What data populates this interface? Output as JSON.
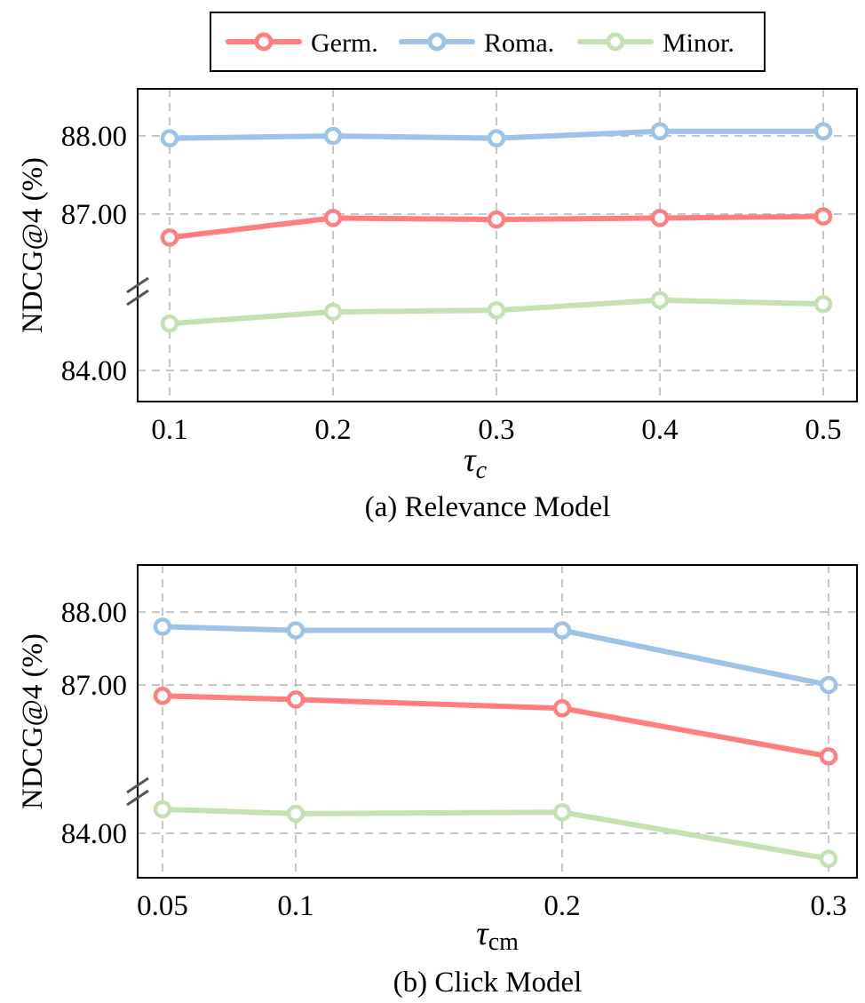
{
  "legend": {
    "series": [
      {
        "name": "Germ.",
        "color": "#ff7f7f"
      },
      {
        "name": "Roma.",
        "color": "#9dc3e6"
      },
      {
        "name": "Minor.",
        "color": "#c5e0b3"
      }
    ]
  },
  "chart_data": [
    {
      "type": "line",
      "caption": "(a) Relevance Model",
      "ylabel": "NDCG@4 (%)",
      "xlabel": {
        "symbol": "τ",
        "subscript": "c"
      },
      "x": [
        0.1,
        0.2,
        0.3,
        0.4,
        0.5
      ],
      "x_tick_labels": [
        "0.1",
        "0.2",
        "0.3",
        "0.4",
        "0.5"
      ],
      "y_tick_labels": [
        "84.00",
        "87.00",
        "88.00"
      ],
      "y_ticks": [
        84,
        87,
        88
      ],
      "broken_y_axis": true,
      "grid": true,
      "legend_position": "top-center",
      "series": [
        {
          "name": "Germ.",
          "values": [
            86.7,
            86.95,
            86.93,
            86.95,
            86.97
          ]
        },
        {
          "name": "Roma.",
          "values": [
            87.97,
            88.0,
            87.97,
            88.06,
            88.06
          ]
        },
        {
          "name": "Minor.",
          "values": [
            84.6,
            84.75,
            84.77,
            84.9,
            84.85
          ]
        }
      ]
    },
    {
      "type": "line",
      "caption": "(b) Click Model",
      "ylabel": "NDCG@4 (%)",
      "xlabel": {
        "symbol": "τ",
        "subscript": "cm"
      },
      "x": [
        0.05,
        0.1,
        0.2,
        0.3
      ],
      "x_tick_labels": [
        "0.05",
        "0.1",
        "0.2",
        "0.3"
      ],
      "y_tick_labels": [
        "84.00",
        "87.00",
        "88.00"
      ],
      "y_ticks": [
        84,
        87,
        88
      ],
      "broken_y_axis": true,
      "grid": true,
      "series": [
        {
          "name": "Germ.",
          "values": [
            86.85,
            86.8,
            86.68,
            86.02
          ]
        },
        {
          "name": "Roma.",
          "values": [
            87.8,
            87.75,
            87.75,
            87.0
          ]
        },
        {
          "name": "Minor.",
          "values": [
            84.33,
            84.27,
            84.29,
            83.65
          ]
        }
      ]
    }
  ]
}
